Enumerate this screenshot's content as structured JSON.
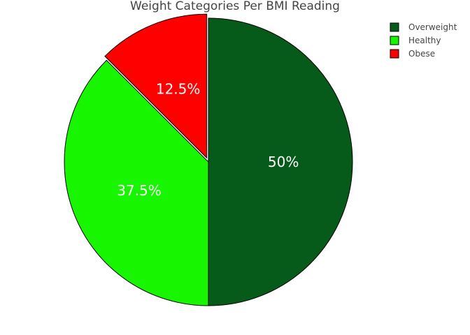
{
  "chart_data": {
    "type": "pie",
    "title": "Weight Categories Per BMI Reading",
    "categories": [
      "Overweight",
      "Healthy",
      "Obese"
    ],
    "values": [
      50,
      37.5,
      12.5
    ],
    "value_labels": [
      "50%",
      "37.5%",
      "12.5%"
    ],
    "colors": [
      "#065b1b",
      "#17f500",
      "#ff0000"
    ],
    "pull": [
      0,
      0,
      0.03
    ],
    "legend_position": "top-right",
    "direction": "clockwise",
    "start_angle": "top"
  }
}
